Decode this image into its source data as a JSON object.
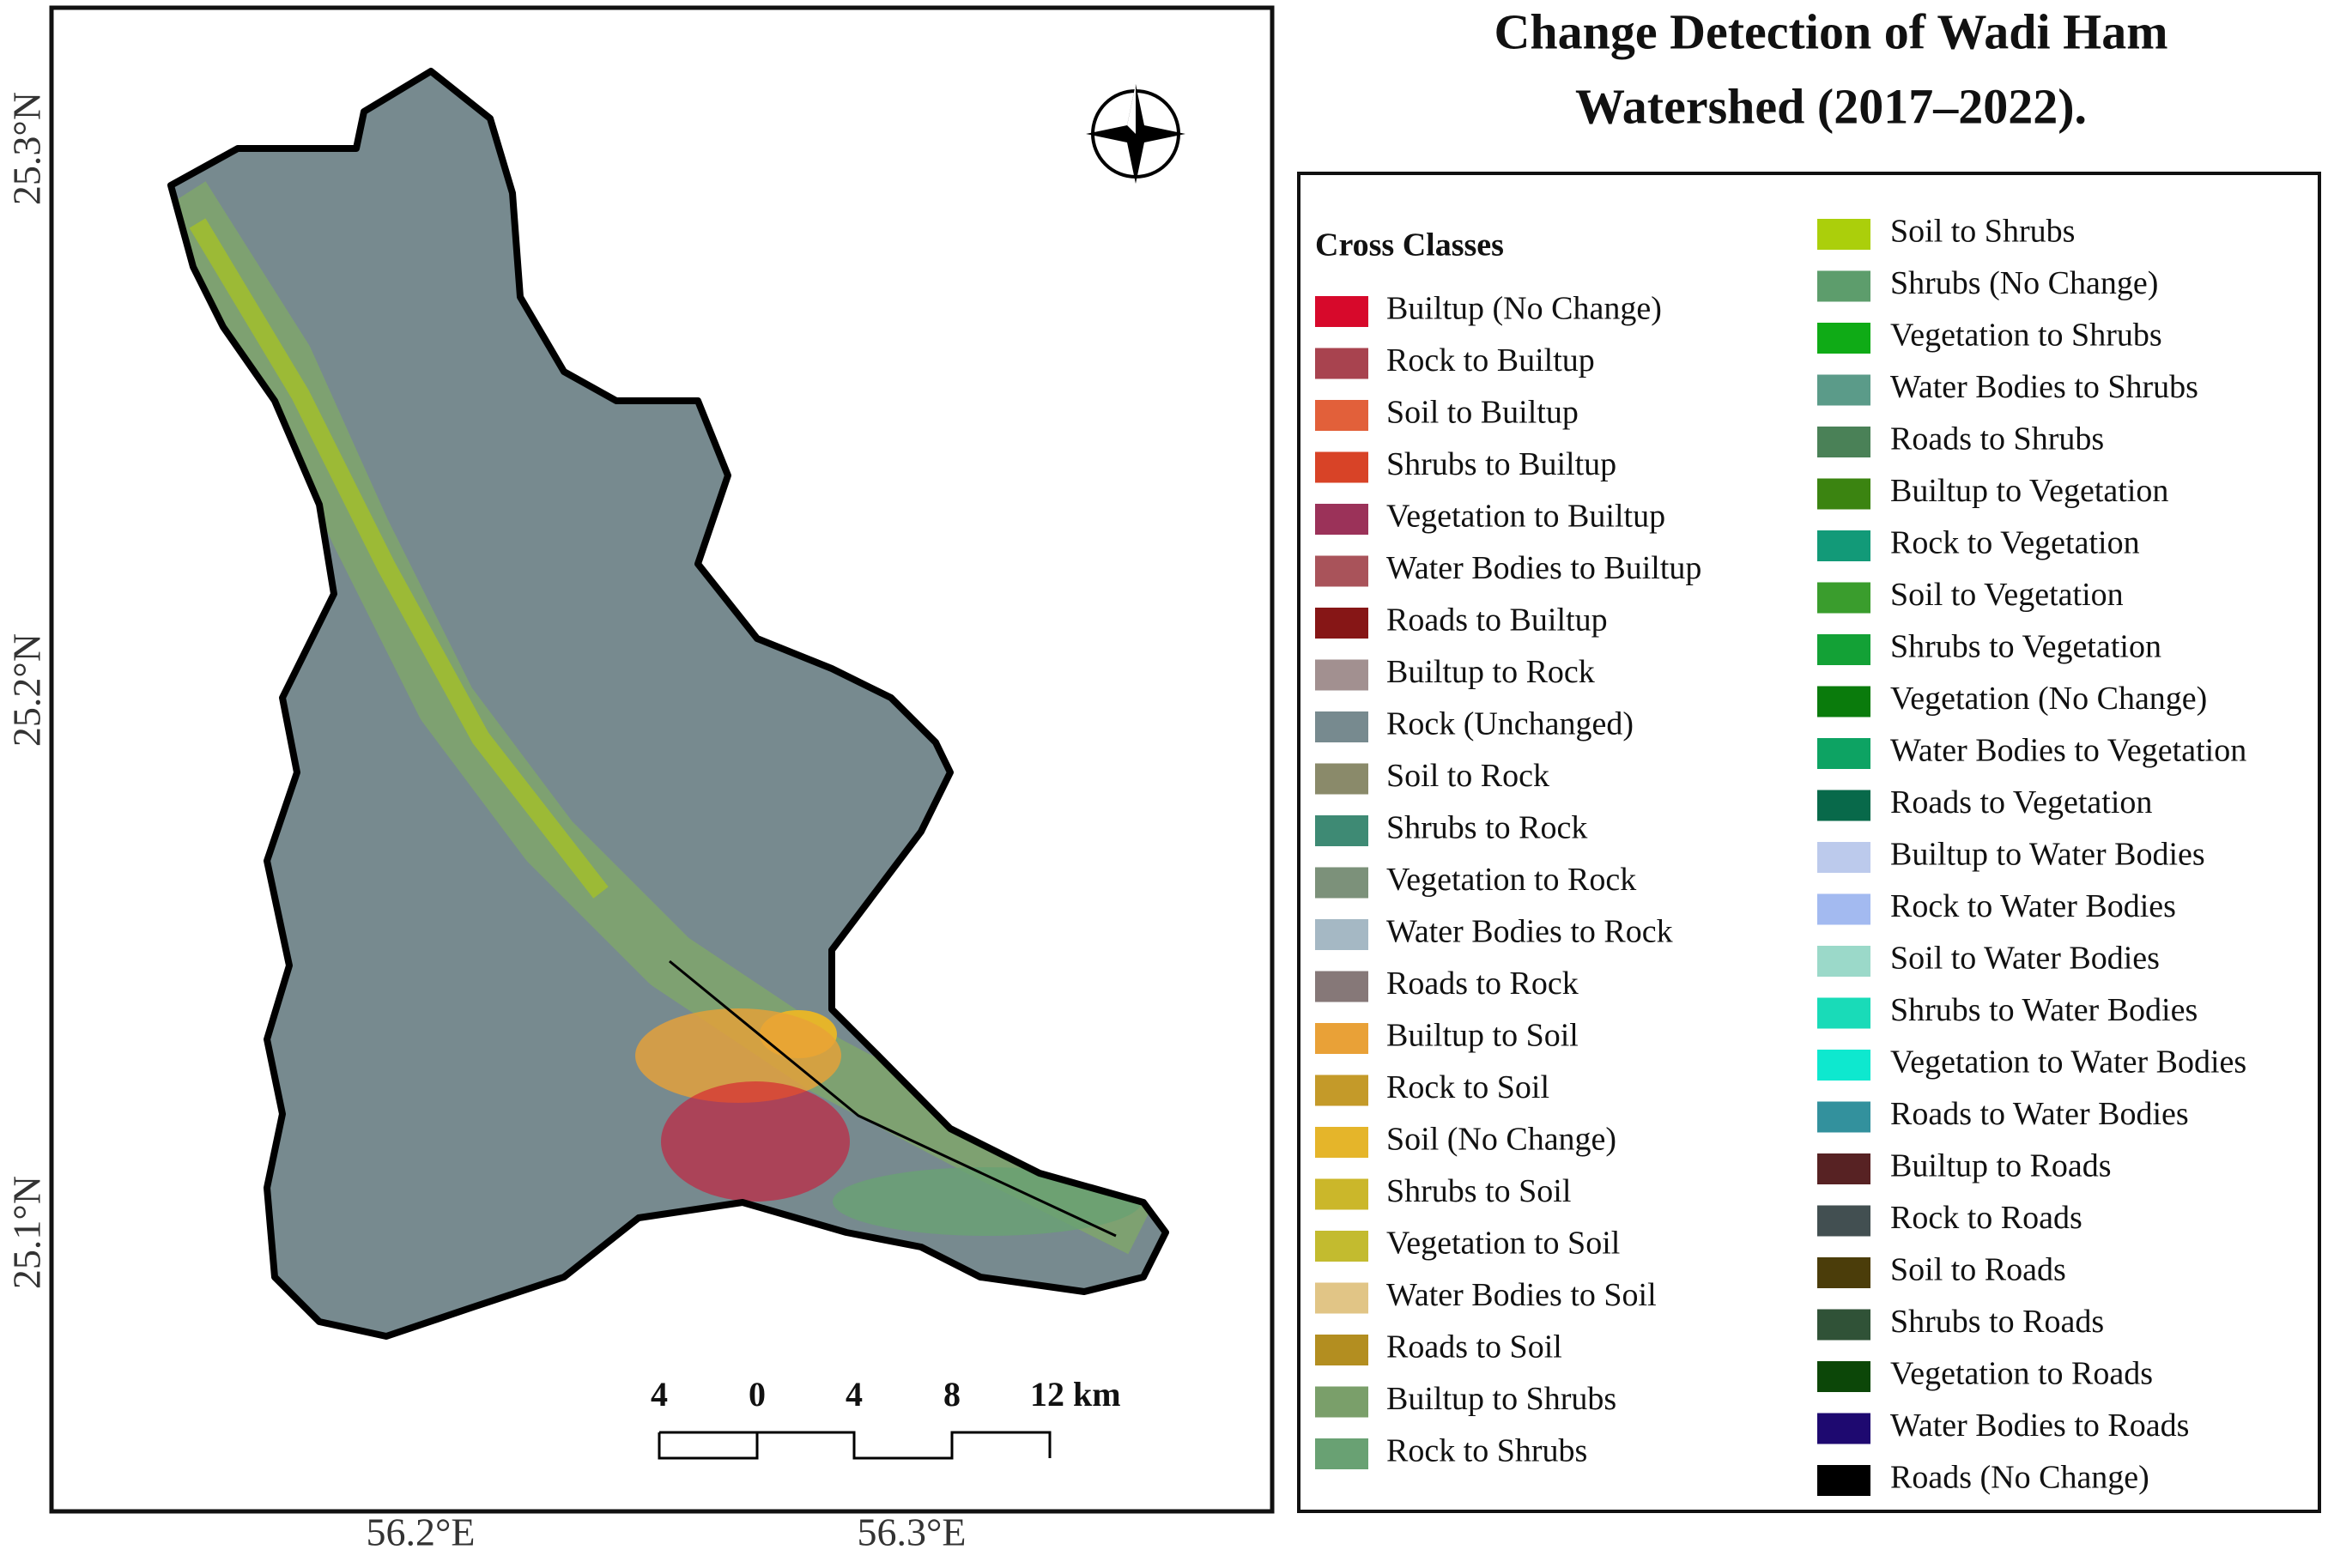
{
  "title": [
    "Change Detection of Wadi Ham",
    "Watershed (2017–2022)."
  ],
  "map": {
    "lat_labels": [
      "25.3°N",
      "25.2°N",
      "25.1°N"
    ],
    "lon_labels": [
      "56.2°E",
      "56.3°E"
    ],
    "scale_bar": [
      "4",
      "0",
      "4",
      "8",
      "12 km"
    ]
  },
  "legend": {
    "title": "Cross Classes",
    "columns": [
      [
        {
          "label": "Builtup (No Change)",
          "color": "#d7092b"
        },
        {
          "label": "Rock to Builtup",
          "color": "#a8434f"
        },
        {
          "label": "Soil to Builtup",
          "color": "#e2603a"
        },
        {
          "label": "Shrubs to Builtup",
          "color": "#d84327"
        },
        {
          "label": "Vegetation to Builtup",
          "color": "#9b3259"
        },
        {
          "label": "Water Bodies to Builtup",
          "color": "#a9535a"
        },
        {
          "label": "Roads to Builtup",
          "color": "#861616"
        },
        {
          "label": "Builtup to Rock",
          "color": "#a29090"
        },
        {
          "label": "Rock (Unchanged)",
          "color": "#778a8f"
        },
        {
          "label": "Soil to Rock",
          "color": "#8a8a6a"
        },
        {
          "label": "Shrubs to Rock",
          "color": "#3e8a74"
        },
        {
          "label": "Vegetation to Rock",
          "color": "#7c917a"
        },
        {
          "label": "Water Bodies to Rock",
          "color": "#a5b8c4"
        },
        {
          "label": "Roads to Rock",
          "color": "#867878"
        },
        {
          "label": "Builtup to Soil",
          "color": "#e9a137"
        },
        {
          "label": "Rock to Soil",
          "color": "#c49a29"
        },
        {
          "label": "Soil (No Change)",
          "color": "#e5b52a"
        },
        {
          "label": "Shrubs to Soil",
          "color": "#cbb72a"
        },
        {
          "label": "Vegetation to Soil",
          "color": "#c3bb2f"
        },
        {
          "label": "Water Bodies to Soil",
          "color": "#e1c586"
        },
        {
          "label": "Roads to Soil",
          "color": "#b38e20"
        },
        {
          "label": "Builtup to Shrubs",
          "color": "#7a9f6a"
        },
        {
          "label": "Rock to Shrubs",
          "color": "#69a173"
        }
      ],
      [
        {
          "label": "Soil to Shrubs",
          "color": "#abcf0b"
        },
        {
          "label": "Shrubs (No Change)",
          "color": "#5d9d6c"
        },
        {
          "label": "Vegetation to Shrubs",
          "color": "#0fab16"
        },
        {
          "label": "Water Bodies to Shrubs",
          "color": "#5b9b89"
        },
        {
          "label": "Roads to Shrubs",
          "color": "#4a8157"
        },
        {
          "label": "Builtup to Vegetation",
          "color": "#3b8411"
        },
        {
          "label": "Rock to Vegetation",
          "color": "#129a78"
        },
        {
          "label": "Soil to Vegetation",
          "color": "#3a9d2d"
        },
        {
          "label": "Shrubs to Vegetation",
          "color": "#13a136"
        },
        {
          "label": "Vegetation (No Change)",
          "color": "#0a7b0c"
        },
        {
          "label": "Water Bodies to Vegetation",
          "color": "#0da363"
        },
        {
          "label": "Roads to Vegetation",
          "color": "#08694a"
        },
        {
          "label": "Builtup to Water Bodies",
          "color": "#bccaec"
        },
        {
          "label": "Rock to Water Bodies",
          "color": "#a3baf0"
        },
        {
          "label": "Soil to Water Bodies",
          "color": "#9bd9c9"
        },
        {
          "label": "Shrubs to Water Bodies",
          "color": "#19dbb8"
        },
        {
          "label": "Vegetation to Water Bodies",
          "color": "#0ee8cf"
        },
        {
          "label": "Roads to Water Bodies",
          "color": "#33919d"
        },
        {
          "label": "Builtup to Roads",
          "color": "#572223"
        },
        {
          "label": "Rock to Roads",
          "color": "#424f51"
        },
        {
          "label": "Soil to Roads",
          "color": "#4b3d0a"
        },
        {
          "label": "Shrubs to Roads",
          "color": "#305237"
        },
        {
          "label": "Vegetation to Roads",
          "color": "#0c4708"
        },
        {
          "label": "Water Bodies to Roads",
          "color": "#1e0970"
        },
        {
          "label": "Roads (No Change)",
          "color": "#000000"
        }
      ]
    ]
  }
}
